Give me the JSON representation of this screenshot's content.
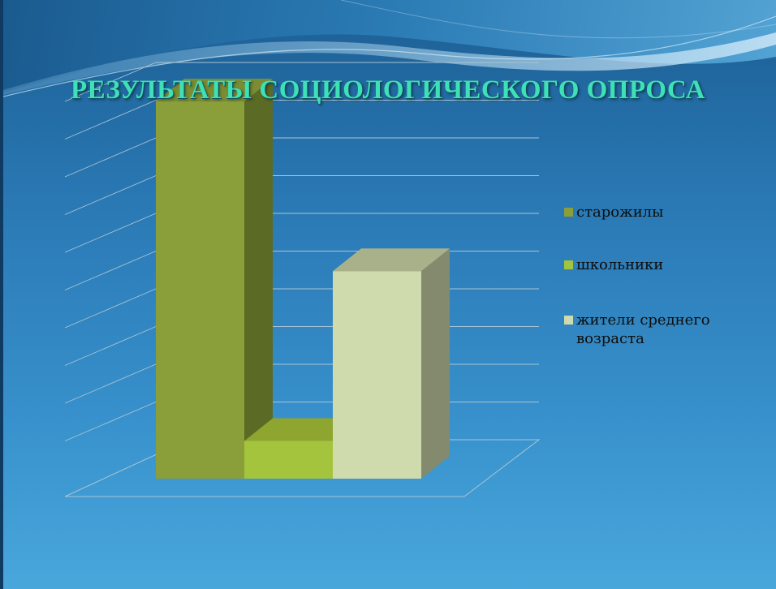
{
  "slide": {
    "title": "РЕЗУЛЬТАТЫ СОЦИОЛОГИЧЕСКОГО ОПРОСА"
  },
  "colors": {
    "background_top": "#1c5e93",
    "background_bottom": "#49a7dc",
    "title": "#3ee0b6",
    "gridline": "#a9c4d4"
  },
  "chart_data": {
    "type": "bar",
    "style": "3d-column",
    "title": "",
    "xlabel": "",
    "ylabel": "",
    "ylim": [
      0,
      100
    ],
    "grid": true,
    "legend_position": "right",
    "categories": [
      ""
    ],
    "series": [
      {
        "name": "старожилы",
        "values": [
          100
        ],
        "color": "#8a9e3a",
        "side": "#5b6a24",
        "top": "#7a8d33"
      },
      {
        "name": "школьники",
        "values": [
          10
        ],
        "color": "#a4c43d",
        "side": "#7b9430",
        "top": "#8ea530"
      },
      {
        "name": "жители среднего возраста",
        "values": [
          55
        ],
        "color": "#d0dbad",
        "side": "#848a6d",
        "top": "#a8b18a"
      }
    ]
  }
}
